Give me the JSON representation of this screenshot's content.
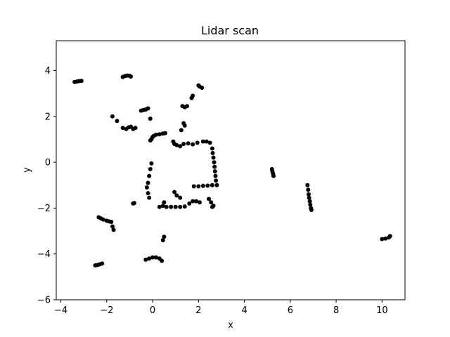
{
  "chart_data": {
    "type": "scatter",
    "title": "Lidar scan",
    "xlabel": "x",
    "ylabel": "y",
    "xlim": [
      -4.2,
      11.0
    ],
    "ylim": [
      -6.0,
      5.3
    ],
    "xticks": [
      -4,
      -2,
      0,
      2,
      4,
      6,
      8,
      10
    ],
    "yticks": [
      -6,
      -4,
      -2,
      0,
      2,
      4
    ],
    "grid": false,
    "marker_color": "#000000",
    "series": [
      {
        "points": [
          [
            -3.4,
            3.5
          ],
          [
            -3.3,
            3.52
          ],
          [
            -3.2,
            3.54
          ],
          [
            -3.1,
            3.55
          ],
          [
            -1.3,
            3.72
          ],
          [
            -1.2,
            3.76
          ],
          [
            -1.1,
            3.78
          ],
          [
            -1.0,
            3.77
          ],
          [
            -0.95,
            3.74
          ],
          [
            -1.75,
            2.0
          ],
          [
            -1.55,
            1.8
          ],
          [
            -1.3,
            1.5
          ],
          [
            -1.15,
            1.45
          ],
          [
            -1.05,
            1.52
          ],
          [
            -0.95,
            1.55
          ],
          [
            -0.85,
            1.45
          ],
          [
            -0.75,
            1.5
          ],
          [
            -0.5,
            2.25
          ],
          [
            -0.4,
            2.28
          ],
          [
            -0.3,
            2.3
          ],
          [
            -0.2,
            2.35
          ],
          [
            -0.1,
            1.9
          ],
          [
            -0.1,
            0.95
          ],
          [
            -0.05,
            1.0
          ],
          [
            0.0,
            1.1
          ],
          [
            0.05,
            1.15
          ],
          [
            0.15,
            1.2
          ],
          [
            0.3,
            1.22
          ],
          [
            0.45,
            1.25
          ],
          [
            0.55,
            1.27
          ],
          [
            -0.05,
            -0.05
          ],
          [
            -0.1,
            -0.3
          ],
          [
            -0.15,
            -0.6
          ],
          [
            -0.2,
            -0.9
          ],
          [
            -0.25,
            -1.1
          ],
          [
            -0.2,
            -1.35
          ],
          [
            -0.15,
            -1.55
          ],
          [
            -0.85,
            -1.8
          ],
          [
            -0.8,
            -1.78
          ],
          [
            0.3,
            -1.95
          ],
          [
            0.45,
            -1.9
          ],
          [
            0.6,
            -1.95
          ],
          [
            0.8,
            -1.95
          ],
          [
            1.0,
            -1.95
          ],
          [
            1.2,
            -1.95
          ],
          [
            1.4,
            -1.93
          ],
          [
            0.5,
            -1.75
          ],
          [
            0.95,
            -1.3
          ],
          [
            1.05,
            -1.45
          ],
          [
            1.2,
            -1.55
          ],
          [
            1.6,
            -1.8
          ],
          [
            1.75,
            -1.7
          ],
          [
            1.9,
            -1.7
          ],
          [
            2.05,
            -1.75
          ],
          [
            1.8,
            -1.05
          ],
          [
            2.0,
            -1.05
          ],
          [
            2.2,
            -1.03
          ],
          [
            2.4,
            -1.02
          ],
          [
            2.6,
            -1.0
          ],
          [
            2.8,
            -1.0
          ],
          [
            2.45,
            -1.6
          ],
          [
            2.55,
            -1.75
          ],
          [
            2.6,
            -1.95
          ],
          [
            2.65,
            -1.9
          ],
          [
            0.9,
            0.9
          ],
          [
            0.95,
            0.8
          ],
          [
            1.05,
            0.75
          ],
          [
            1.2,
            0.7
          ],
          [
            1.35,
            0.8
          ],
          [
            1.55,
            0.82
          ],
          [
            1.75,
            0.78
          ],
          [
            1.95,
            0.85
          ],
          [
            1.25,
            1.4
          ],
          [
            1.35,
            1.7
          ],
          [
            1.4,
            1.6
          ],
          [
            1.3,
            2.45
          ],
          [
            1.4,
            2.4
          ],
          [
            1.5,
            2.45
          ],
          [
            1.7,
            2.8
          ],
          [
            1.75,
            2.9
          ],
          [
            2.0,
            3.35
          ],
          [
            2.05,
            3.3
          ],
          [
            2.15,
            3.25
          ],
          [
            2.2,
            0.9
          ],
          [
            2.35,
            0.9
          ],
          [
            2.5,
            0.85
          ],
          [
            2.6,
            0.6
          ],
          [
            2.62,
            0.4
          ],
          [
            2.65,
            0.2
          ],
          [
            2.68,
            0.0
          ],
          [
            2.7,
            -0.2
          ],
          [
            2.72,
            -0.4
          ],
          [
            2.74,
            -0.6
          ],
          [
            2.76,
            -0.8
          ],
          [
            -2.35,
            -2.4
          ],
          [
            -2.25,
            -2.45
          ],
          [
            -2.15,
            -2.5
          ],
          [
            -2.0,
            -2.55
          ],
          [
            -1.9,
            -2.58
          ],
          [
            -1.8,
            -2.6
          ],
          [
            -1.75,
            -2.8
          ],
          [
            -1.7,
            -2.95
          ],
          [
            -2.5,
            -4.5
          ],
          [
            -2.4,
            -4.48
          ],
          [
            -2.3,
            -4.45
          ],
          [
            -2.2,
            -4.42
          ],
          [
            -0.3,
            -4.25
          ],
          [
            -0.15,
            -4.2
          ],
          [
            0.0,
            -4.15
          ],
          [
            0.15,
            -4.15
          ],
          [
            0.3,
            -4.2
          ],
          [
            0.4,
            -4.3
          ],
          [
            0.45,
            -3.4
          ],
          [
            0.5,
            -3.25
          ],
          [
            5.2,
            -0.3
          ],
          [
            5.22,
            -0.4
          ],
          [
            5.25,
            -0.5
          ],
          [
            5.27,
            -0.6
          ],
          [
            6.75,
            -1.0
          ],
          [
            6.78,
            -1.2
          ],
          [
            6.8,
            -1.4
          ],
          [
            6.82,
            -1.55
          ],
          [
            6.85,
            -1.7
          ],
          [
            6.87,
            -1.85
          ],
          [
            6.9,
            -2.0
          ],
          [
            6.92,
            -2.08
          ],
          [
            10.0,
            -3.35
          ],
          [
            10.15,
            -3.33
          ],
          [
            10.3,
            -3.28
          ],
          [
            10.35,
            -3.22
          ]
        ]
      }
    ]
  }
}
